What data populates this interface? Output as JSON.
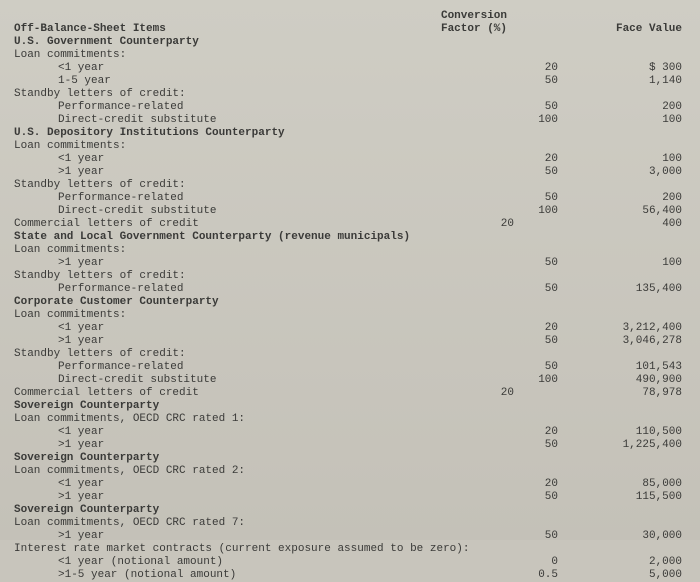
{
  "header": {
    "left": "Off-Balance-Sheet Items",
    "cf1": "Conversion",
    "cf2": "Factor (%)",
    "fv": "Face Value"
  },
  "rows": [
    {
      "label": "U.S. Government Counterparty",
      "bold": true
    },
    {
      "label": "Loan commitments:"
    },
    {
      "label": "<1 year",
      "indent": 2,
      "cf": "20",
      "fv": "$ 300"
    },
    {
      "label": "1-5 year",
      "indent": 2,
      "cf": "50",
      "fv": "1,140"
    },
    {
      "label": "Standby letters of credit:"
    },
    {
      "label": "Performance-related",
      "indent": 2,
      "cf": "50",
      "fv": "200"
    },
    {
      "label": "Direct-credit substitute",
      "indent": 2,
      "cf": "100",
      "fv": "100"
    },
    {
      "label": "U.S. Depository Institutions Counterparty",
      "bold": true
    },
    {
      "label": "Loan commitments:"
    },
    {
      "label": "<1 year",
      "indent": 2,
      "cf": "20",
      "fv": "100"
    },
    {
      "label": ">1 year",
      "indent": 2,
      "cf": "50",
      "fv": "3,000"
    },
    {
      "label": "Standby letters of credit:"
    },
    {
      "label": "Performance-related",
      "indent": 2,
      "cf": "50",
      "fv": "200"
    },
    {
      "label": "Direct-credit substitute",
      "indent": 2,
      "cf": "100",
      "fv": "56,400"
    },
    {
      "label": "Commercial letters of credit",
      "cf": "20",
      "fv": "400"
    },
    {
      "label": "State and Local Government Counterparty (revenue municipals)",
      "bold": true
    },
    {
      "label": "Loan commitments:"
    },
    {
      "label": ">1 year",
      "indent": 2,
      "cf": "50",
      "fv": "100"
    },
    {
      "label": "Standby letters of credit:"
    },
    {
      "label": "Performance-related",
      "indent": 2,
      "cf": "50",
      "fv": "135,400"
    },
    {
      "label": "Corporate Customer Counterparty",
      "bold": true
    },
    {
      "label": "Loan commitments:"
    },
    {
      "label": "<1 year",
      "indent": 2,
      "cf": "20",
      "fv": "3,212,400"
    },
    {
      "label": ">1 year",
      "indent": 2,
      "cf": "50",
      "fv": "3,046,278"
    },
    {
      "label": "Standby letters of credit:"
    },
    {
      "label": "Performance-related",
      "indent": 2,
      "cf": "50",
      "fv": "101,543"
    },
    {
      "label": "Direct-credit substitute",
      "indent": 2,
      "cf": "100",
      "fv": "490,900"
    },
    {
      "label": "Commercial letters of credit",
      "cf": "20",
      "fv": "78,978"
    },
    {
      "label": "Sovereign Counterparty",
      "bold": true
    },
    {
      "label": "Loan commitments, OECD CRC rated 1:"
    },
    {
      "label": "<1 year",
      "indent": 2,
      "cf": "20",
      "fv": "110,500"
    },
    {
      "label": ">1 year",
      "indent": 2,
      "cf": "50",
      "fv": "1,225,400"
    },
    {
      "label": "Sovereign Counterparty",
      "bold": true
    },
    {
      "label": "Loan commitments, OECD CRC rated 2:"
    },
    {
      "label": "<1 year",
      "indent": 2,
      "cf": "20",
      "fv": "85,000"
    },
    {
      "label": ">1 year",
      "indent": 2,
      "cf": "50",
      "fv": "115,500"
    },
    {
      "label": "Sovereign Counterparty",
      "bold": true
    },
    {
      "label": "Loan commitments, OECD CRC rated 7:"
    },
    {
      "label": ">1 year",
      "indent": 2,
      "cf": "50",
      "fv": "30,000"
    },
    {
      "label": "Interest rate market contracts (current exposure assumed to be zero):"
    },
    {
      "label": "<1 year (notional amount)",
      "indent": 2,
      "cf": "0",
      "fv": "2,000"
    },
    {
      "label": ">1-5 year (notional amount)",
      "indent": 2,
      "cf": "0.5",
      "fv": "5,000"
    }
  ]
}
